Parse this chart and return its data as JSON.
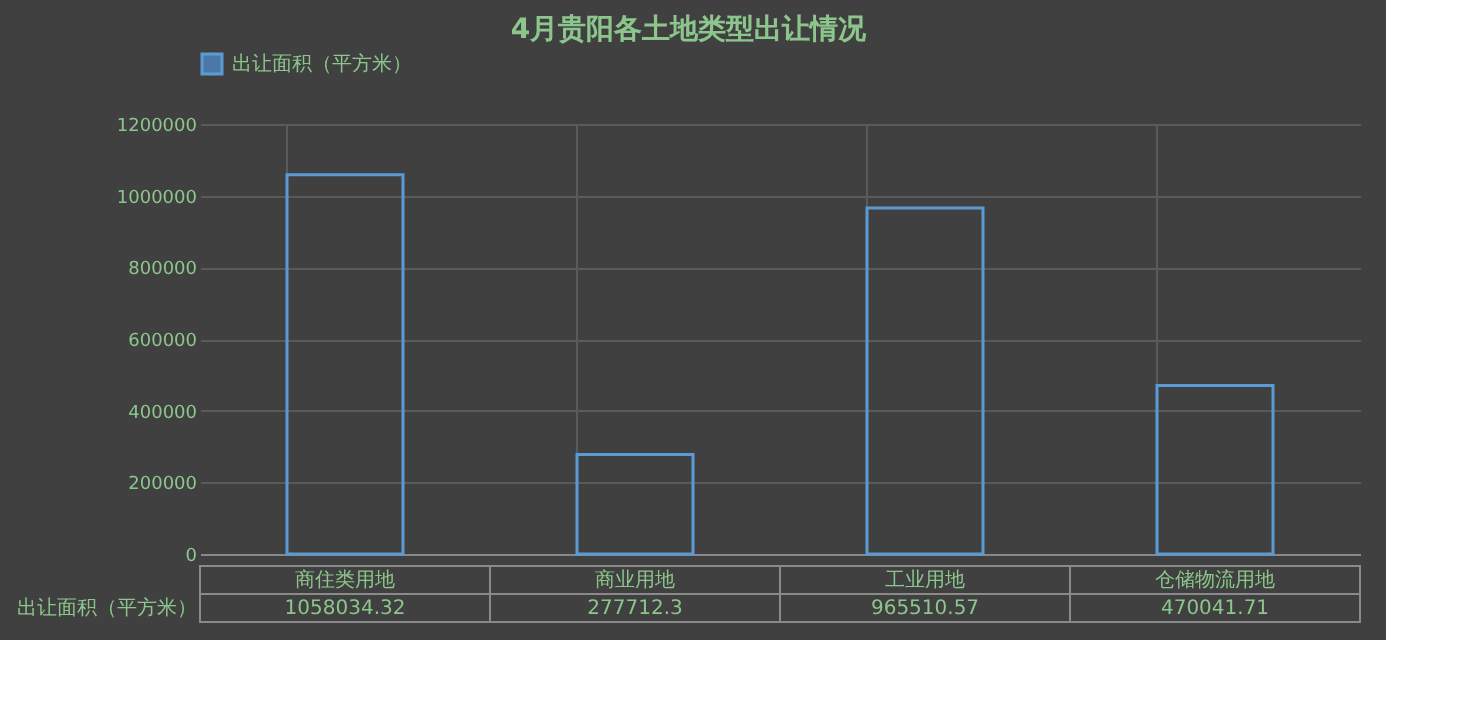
{
  "chart_data": {
    "type": "bar",
    "title": "4月贵阳各土地类型出让情况",
    "categories": [
      "商住类用地",
      "商业用地",
      "工业用地",
      "仓储物流用地"
    ],
    "series": [
      {
        "name": "出让面积（平方米）",
        "color": "#5b9bd5",
        "values": [
          1058034.32,
          277712.3,
          965510.57,
          470041.71
        ]
      }
    ],
    "ylim": [
      0,
      1200000
    ],
    "yticks": [
      0,
      200000,
      400000,
      600000,
      800000,
      1000000,
      1200000
    ],
    "grid": true,
    "legend": "top",
    "data_labels": true
  }
}
